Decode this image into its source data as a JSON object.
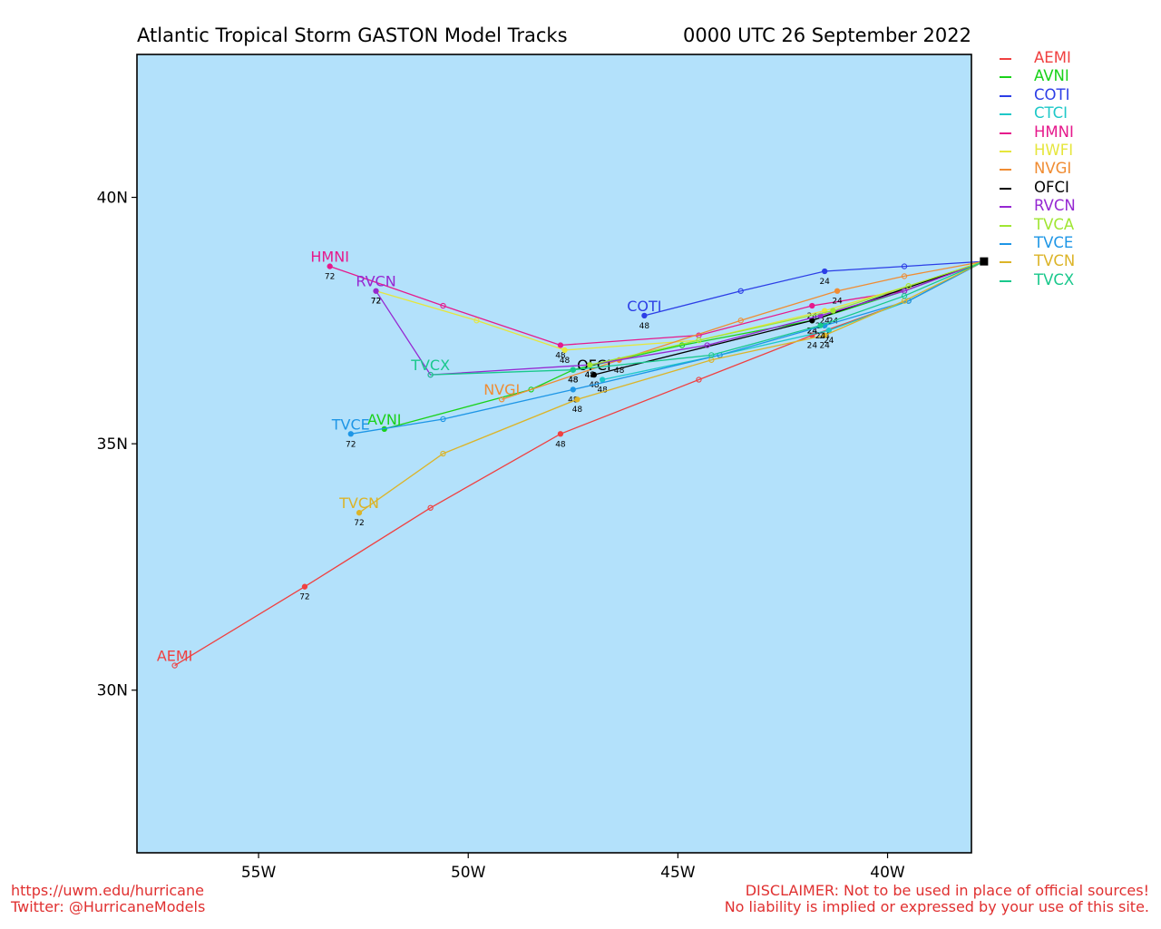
{
  "header": {
    "title": "Atlantic Tropical Storm GASTON Model Tracks",
    "datetime": "0000 UTC 26 September 2022"
  },
  "footer": {
    "site": "https://uwm.edu/hurricane",
    "twitter": "Twitter: @HurricaneModels",
    "disclaimer_1": "DISCLAIMER: Not to be used in place of official sources!",
    "disclaimer_2": "No liability is implied or expressed by your use of this site."
  },
  "colors": {
    "ocean": "#b3e1fb",
    "frame": "#000000",
    "footer_text": "#e03030"
  },
  "map": {
    "lon_range": [
      -57.9,
      -38.0
    ],
    "lat_range": [
      26.7,
      42.9
    ],
    "lon_ticks": [
      {
        "value": -55,
        "label": "55W"
      },
      {
        "value": -50,
        "label": "50W"
      },
      {
        "value": -45,
        "label": "45W"
      },
      {
        "value": -40,
        "label": "40W"
      }
    ],
    "lat_ticks": [
      {
        "value": 40,
        "label": "40N"
      },
      {
        "value": 35,
        "label": "35N"
      },
      {
        "value": 30,
        "label": "30N"
      }
    ],
    "storm_position": {
      "lon": -37.7,
      "lat": 38.7
    }
  },
  "models": [
    {
      "name": "AEMI",
      "color": "#f04040",
      "points": [
        [
          -37.7,
          38.7
        ],
        [
          -39.5,
          37.9
        ],
        [
          -41.8,
          37.2
        ],
        [
          -44.5,
          36.3
        ],
        [
          -47.8,
          35.2
        ],
        [
          -50.9,
          33.7
        ],
        [
          -53.9,
          32.1
        ],
        [
          -57.0,
          30.5
        ]
      ],
      "hour_labels": [
        {
          "text": "24",
          "i": 2
        },
        {
          "text": "48",
          "i": 4
        },
        {
          "text": "72",
          "i": 6
        }
      ],
      "name_at": [
        -57.0,
        30.5
      ]
    },
    {
      "name": "AVNI",
      "color": "#19d219",
      "points": [
        [
          -37.7,
          38.7
        ],
        [
          -39.6,
          38.1
        ],
        [
          -41.8,
          37.5
        ],
        [
          -44.9,
          37.0
        ],
        [
          -47.5,
          36.5
        ],
        [
          -48.5,
          36.1
        ],
        [
          -52.0,
          35.3
        ]
      ],
      "hour_labels": [
        {
          "text": "24",
          "i": 2
        },
        {
          "text": "48",
          "i": 4
        }
      ],
      "name_at": [
        -52.0,
        35.3
      ]
    },
    {
      "name": "COTI",
      "color": "#2c3ee6",
      "points": [
        [
          -37.7,
          38.7
        ],
        [
          -39.6,
          38.6
        ],
        [
          -41.5,
          38.5
        ],
        [
          -43.5,
          38.1
        ],
        [
          -45.8,
          37.6
        ]
      ],
      "hour_labels": [
        {
          "text": "24",
          "i": 2
        },
        {
          "text": "48",
          "i": 4
        }
      ],
      "name_at": [
        -45.8,
        37.6
      ]
    },
    {
      "name": "CTCI",
      "color": "#1ec8c8",
      "points": [
        [
          -37.7,
          38.7
        ],
        [
          -39.5,
          37.9
        ],
        [
          -41.4,
          37.3
        ],
        [
          -44.0,
          36.8
        ],
        [
          -46.8,
          36.3
        ]
      ],
      "hour_labels": [
        {
          "text": "24",
          "i": 2
        },
        {
          "text": "48",
          "i": 4
        }
      ],
      "name_at": null
    },
    {
      "name": "HMNI",
      "color": "#e6198c",
      "points": [
        [
          -37.7,
          38.7
        ],
        [
          -39.6,
          38.1
        ],
        [
          -41.8,
          37.8
        ],
        [
          -44.5,
          37.2
        ],
        [
          -47.8,
          37.0
        ],
        [
          -50.6,
          37.8
        ],
        [
          -53.3,
          38.6
        ]
      ],
      "hour_labels": [
        {
          "text": "24",
          "i": 2
        },
        {
          "text": "48",
          "i": 4
        },
        {
          "text": "72",
          "i": 6
        }
      ],
      "name_at": [
        -53.3,
        38.6
      ]
    },
    {
      "name": "HWFI",
      "color": "#e6e63c",
      "points": [
        [
          -37.7,
          38.7
        ],
        [
          -39.5,
          38.2
        ],
        [
          -41.5,
          37.7
        ],
        [
          -44.5,
          37.1
        ],
        [
          -47.7,
          36.9
        ],
        [
          -49.8,
          37.5
        ],
        [
          -52.2,
          38.1
        ]
      ],
      "hour_labels": [
        {
          "text": "24",
          "i": 2
        },
        {
          "text": "48",
          "i": 4
        },
        {
          "text": "72",
          "i": 6
        }
      ],
      "name_at": null
    },
    {
      "name": "NVGI",
      "color": "#f08c32",
      "points": [
        [
          -37.7,
          38.7
        ],
        [
          -39.6,
          38.4
        ],
        [
          -41.2,
          38.1
        ],
        [
          -43.5,
          37.5
        ],
        [
          -46.4,
          36.7
        ],
        [
          -49.2,
          35.9
        ]
      ],
      "hour_labels": [
        {
          "text": "24",
          "i": 2
        },
        {
          "text": "48",
          "i": 4
        }
      ],
      "name_at": [
        -49.2,
        35.9
      ]
    },
    {
      "name": "OFCI",
      "color": "#000000",
      "points": [
        [
          -37.7,
          38.7
        ],
        [
          -41.8,
          37.5
        ],
        [
          -47.0,
          36.4
        ]
      ],
      "hour_labels": [
        {
          "text": "24",
          "i": 1
        },
        {
          "text": "48",
          "i": 2
        }
      ],
      "name_at": [
        -47.0,
        36.4
      ]
    },
    {
      "name": "RVCN",
      "color": "#9628d2",
      "points": [
        [
          -37.7,
          38.7
        ],
        [
          -39.6,
          38.1
        ],
        [
          -41.6,
          37.6
        ],
        [
          -44.3,
          37.0
        ],
        [
          -47.1,
          36.6
        ],
        [
          -50.9,
          36.4
        ],
        [
          -52.2,
          38.1
        ]
      ],
      "hour_labels": [
        {
          "text": "24",
          "i": 2
        },
        {
          "text": "48",
          "i": 4
        },
        {
          "text": "72",
          "i": 6
        }
      ],
      "name_at": [
        -52.2,
        38.1
      ]
    },
    {
      "name": "TVCA",
      "color": "#a0e632",
      "points": [
        [
          -37.7,
          38.7
        ],
        [
          -39.5,
          38.2
        ],
        [
          -41.3,
          37.7
        ],
        [
          -44.5,
          37.1
        ],
        [
          -47.1,
          36.6
        ]
      ],
      "hour_labels": [
        {
          "text": "24",
          "i": 2
        },
        {
          "text": "48",
          "i": 4
        }
      ],
      "name_at": null
    },
    {
      "name": "TVCE",
      "color": "#1e96e6",
      "points": [
        [
          -37.7,
          38.7
        ],
        [
          -39.5,
          37.9
        ],
        [
          -41.5,
          37.4
        ],
        [
          -44.0,
          36.8
        ],
        [
          -47.5,
          36.1
        ],
        [
          -50.6,
          35.5
        ],
        [
          -52.8,
          35.2
        ]
      ],
      "hour_labels": [
        {
          "text": "24",
          "i": 2
        },
        {
          "text": "48",
          "i": 4
        },
        {
          "text": "72",
          "i": 6
        }
      ],
      "name_at": [
        -52.8,
        35.2
      ]
    },
    {
      "name": "TVCN",
      "color": "#dcb428",
      "points": [
        [
          -37.7,
          38.7
        ],
        [
          -39.6,
          37.9
        ],
        [
          -41.5,
          37.2
        ],
        [
          -44.2,
          36.7
        ],
        [
          -47.4,
          35.9
        ],
        [
          -50.6,
          34.8
        ],
        [
          -52.6,
          33.6
        ]
      ],
      "hour_labels": [
        {
          "text": "24",
          "i": 2
        },
        {
          "text": "48",
          "i": 4
        },
        {
          "text": "72",
          "i": 6
        }
      ],
      "name_at": [
        -52.6,
        33.6
      ]
    },
    {
      "name": "TVCX",
      "color": "#19c88c",
      "points": [
        [
          -37.7,
          38.7
        ],
        [
          -39.6,
          38.0
        ],
        [
          -41.6,
          37.4
        ],
        [
          -44.2,
          36.8
        ],
        [
          -47.5,
          36.5
        ],
        [
          -50.9,
          36.4
        ]
      ],
      "hour_labels": [
        {
          "text": "24",
          "i": 2
        },
        {
          "text": "48",
          "i": 4
        }
      ],
      "name_at": [
        -50.9,
        36.4
      ]
    }
  ]
}
